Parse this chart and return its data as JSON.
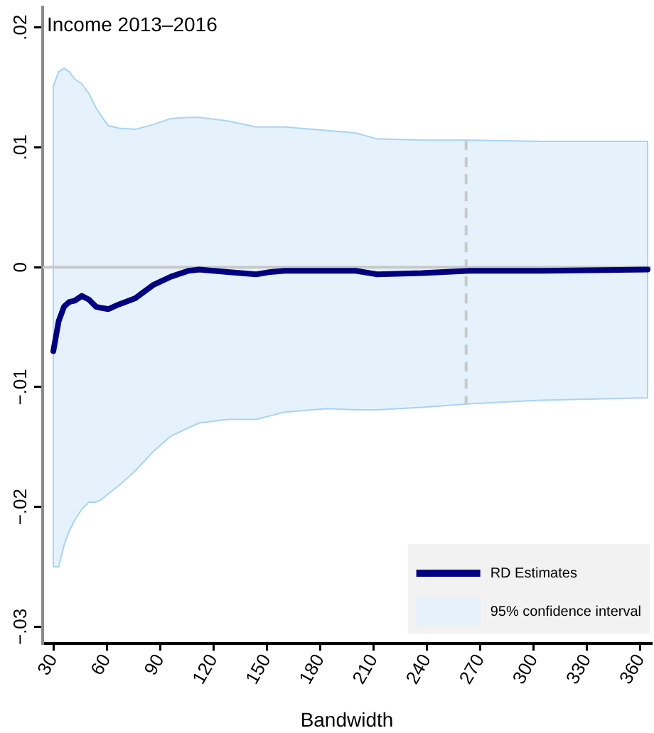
{
  "chart_data": {
    "type": "line",
    "title": "Income 2013–2016",
    "xlabel": "Bandwidth",
    "xlim": [
      24,
      366
    ],
    "xticks": [
      30,
      60,
      90,
      120,
      150,
      180,
      210,
      240,
      270,
      300,
      330,
      360
    ],
    "ylim": [
      -0.0314,
      0.0217
    ],
    "yticks": [
      {
        "value": -0.03,
        "label": "−.03"
      },
      {
        "value": -0.02,
        "label": "−.02"
      },
      {
        "value": -0.01,
        "label": "−.01"
      },
      {
        "value": 0,
        "label": "0"
      },
      {
        "value": 0.01,
        "label": ".01"
      },
      {
        "value": 0.02,
        "label": ".02"
      }
    ],
    "legend": "bottom right",
    "ref_lines": [
      {
        "axis": "y",
        "value": 0,
        "color": "#c8c8c8"
      },
      {
        "axis": "x",
        "value": 262,
        "color": "#c8c8c8",
        "line_style": "dashed"
      }
    ],
    "series": [
      {
        "name": "RD Estimates",
        "color": "#000080",
        "x": [
          30,
          33,
          36,
          39,
          42,
          46,
          50,
          54,
          57,
          61,
          67,
          76,
          86,
          96,
          106,
          112,
          128,
          144,
          152,
          160,
          184,
          200,
          212,
          237,
          264,
          304,
          364
        ],
        "values": [
          -0.007,
          -0.0045,
          -0.0033,
          -0.0029,
          -0.0028,
          -0.0024,
          -0.0027,
          -0.0033,
          -0.0034,
          -0.0035,
          -0.0031,
          -0.0026,
          -0.0015,
          -0.0008,
          -0.0003,
          -0.0002,
          -0.0004,
          -0.0006,
          -0.0004,
          -0.0003,
          -0.0003,
          -0.0003,
          -0.0006,
          -0.0005,
          -0.0003,
          -0.0003,
          -0.0002
        ],
        "upper": [
          0.0151,
          0.0163,
          0.0166,
          0.0163,
          0.0157,
          0.0153,
          0.0145,
          0.0133,
          0.0126,
          0.0118,
          0.0116,
          0.0115,
          0.0119,
          0.0124,
          0.0125,
          0.0125,
          0.0122,
          0.0117,
          0.0117,
          0.0117,
          0.0114,
          0.0112,
          0.0107,
          0.0106,
          0.0106,
          0.0105,
          0.0105
        ],
        "lower": [
          -0.025,
          -0.025,
          -0.0232,
          -0.022,
          -0.0211,
          -0.0202,
          -0.0196,
          -0.0196,
          -0.0194,
          -0.0189,
          -0.0182,
          -0.017,
          -0.0154,
          -0.0141,
          -0.0134,
          -0.013,
          -0.0127,
          -0.0127,
          -0.0124,
          -0.0121,
          -0.0118,
          -0.0119,
          -0.0119,
          -0.0117,
          -0.0114,
          -0.0111,
          -0.0109
        ]
      },
      {
        "name": "95% confidence interval",
        "type": "area",
        "color": "#e5f2fc"
      }
    ]
  }
}
